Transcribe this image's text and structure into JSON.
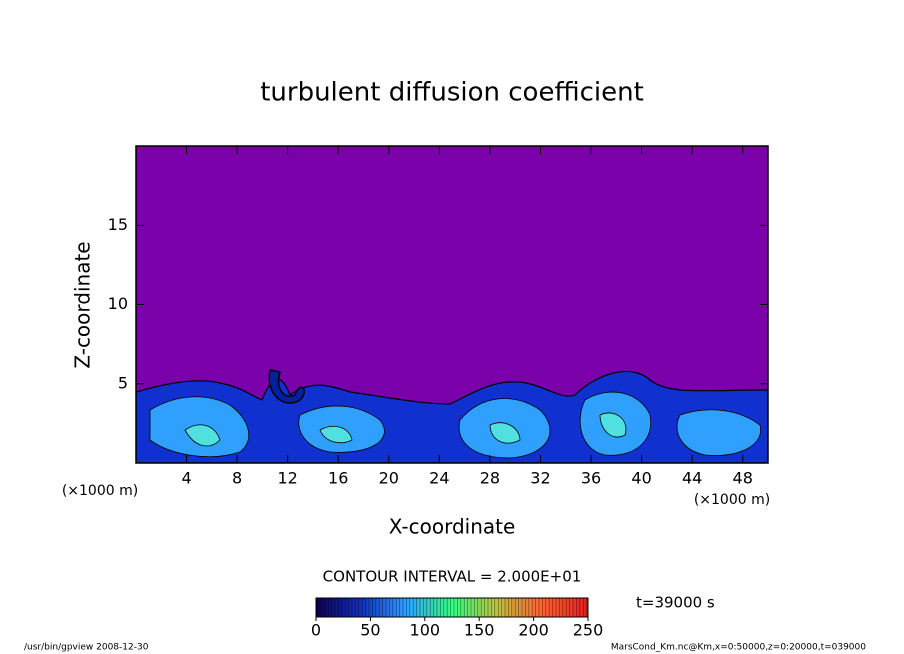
{
  "chart_data": {
    "type": "contour",
    "title": "turbulent diffusion coefficient",
    "xlabel": "X-coordinate",
    "ylabel": "Z-coordinate",
    "x_unit": "(×1000 m)",
    "y_unit": "(×1000 m)",
    "xlim": [
      0,
      50
    ],
    "xticks": [
      4,
      8,
      12,
      16,
      20,
      24,
      28,
      32,
      36,
      40,
      44,
      48
    ],
    "ylim": [
      0,
      20
    ],
    "yticks": [
      5,
      10,
      15
    ],
    "colorbar": {
      "label": "CONTOUR INTERVAL = 2.000E+01",
      "lim": [
        0,
        250
      ],
      "ticks": [
        0,
        50,
        100,
        150,
        200,
        250
      ],
      "colors": [
        "#100050",
        "#1030c0",
        "#30a0ff",
        "#30ff80",
        "#c0c040",
        "#ff6030",
        "#e02020"
      ]
    },
    "time": "t=39000 s",
    "footer_left": "/usr/bin/gpview  2008-12-30",
    "footer_right": "MarsCond_Km.nc@Km,x=0:50000,z=0:20000,t=039000"
  }
}
